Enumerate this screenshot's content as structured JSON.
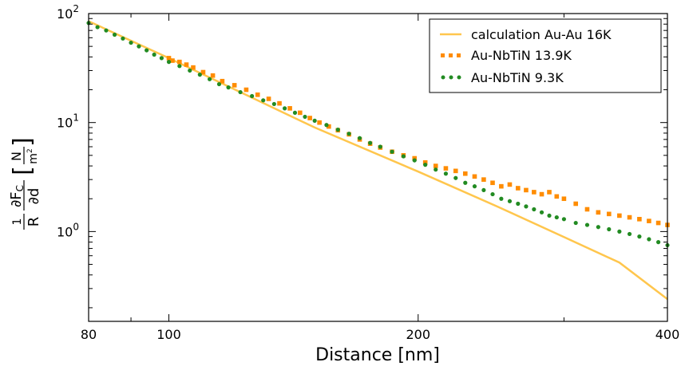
{
  "chart_data": {
    "type": "scatter",
    "title": "",
    "xlabel": "Distance [nm]",
    "ylabel": {
      "fraction_num": "1",
      "fraction_den": "R",
      "partial_num": "∂F",
      "partial_num_sub": "C",
      "partial_den": "∂d",
      "unit_num": "N",
      "unit_den": "m",
      "unit_den_sup": "2"
    },
    "x_scale": "log",
    "y_scale": "log",
    "xlim": [
      80,
      400
    ],
    "ylim": [
      0.15,
      100
    ],
    "x_ticks": [
      {
        "value": 80,
        "label": "80"
      },
      {
        "value": 100,
        "label": "100"
      },
      {
        "value": 200,
        "label": "200"
      },
      {
        "value": 400,
        "label": "400"
      }
    ],
    "y_ticks": [
      {
        "value": 1,
        "label": "10",
        "exp": "0"
      },
      {
        "value": 10,
        "label": "10",
        "exp": "1"
      },
      {
        "value": 100,
        "label": "10",
        "exp": "2"
      }
    ],
    "grid": false,
    "legend_position": "top-right",
    "series": [
      {
        "name": "calculation Au-Au 16K",
        "kind": "line",
        "color": "#FFC64D",
        "x": [
          80,
          100,
          150,
          200,
          250,
          300,
          350,
          400
        ],
        "y": [
          85,
          39,
          9.0,
          3.55,
          1.68,
          0.89,
          0.52,
          0.24
        ]
      },
      {
        "name": "Au-NbTiN 13.9K",
        "kind": "square",
        "color": "#FF8C00",
        "x": [
          100,
          101,
          103,
          105,
          107,
          110,
          113,
          116,
          120,
          124,
          128,
          132,
          136,
          140,
          144,
          148,
          152,
          156,
          160,
          165,
          170,
          175,
          180,
          186,
          192,
          198,
          204,
          210,
          216,
          222,
          228,
          234,
          240,
          246,
          252,
          258,
          264,
          270,
          276,
          282,
          288,
          294,
          300,
          310,
          320,
          330,
          340,
          350,
          360,
          370,
          380,
          390,
          400
        ],
        "y": [
          39,
          37,
          36,
          34,
          32,
          29,
          27,
          24,
          22,
          20,
          18,
          16.5,
          15,
          13.5,
          12.3,
          11,
          10,
          9.2,
          8.5,
          7.8,
          7.0,
          6.4,
          5.9,
          5.4,
          5.0,
          4.7,
          4.3,
          4.0,
          3.8,
          3.6,
          3.4,
          3.2,
          3.0,
          2.8,
          2.6,
          2.7,
          2.5,
          2.4,
          2.3,
          2.2,
          2.3,
          2.1,
          2.0,
          1.8,
          1.6,
          1.5,
          1.45,
          1.4,
          1.35,
          1.3,
          1.25,
          1.2,
          1.15
        ]
      },
      {
        "name": "Au-NbTiN 9.3K",
        "kind": "circle",
        "color": "#228B22",
        "x": [
          80,
          82,
          84,
          86,
          88,
          90,
          92,
          94,
          96,
          98,
          100,
          103,
          106,
          109,
          112,
          115,
          118,
          122,
          126,
          130,
          134,
          138,
          142,
          146,
          150,
          155,
          160,
          165,
          170,
          175,
          180,
          186,
          192,
          198,
          204,
          210,
          216,
          222,
          228,
          234,
          240,
          246,
          252,
          258,
          264,
          270,
          276,
          282,
          288,
          294,
          300,
          310,
          320,
          330,
          340,
          350,
          360,
          370,
          380,
          390,
          400
        ],
        "y": [
          82,
          75,
          70,
          64,
          59,
          54,
          50,
          46,
          42,
          39,
          36,
          33,
          30,
          27.5,
          25,
          22.5,
          21,
          19,
          17.5,
          16,
          14.8,
          13.5,
          12.3,
          11.3,
          10.4,
          9.5,
          8.6,
          7.9,
          7.2,
          6.5,
          6.0,
          5.4,
          4.9,
          4.5,
          4.1,
          3.7,
          3.4,
          3.1,
          2.8,
          2.6,
          2.4,
          2.2,
          2.0,
          1.9,
          1.8,
          1.7,
          1.6,
          1.5,
          1.4,
          1.35,
          1.3,
          1.2,
          1.15,
          1.1,
          1.05,
          1.0,
          0.95,
          0.9,
          0.85,
          0.8,
          0.75
        ]
      }
    ]
  }
}
